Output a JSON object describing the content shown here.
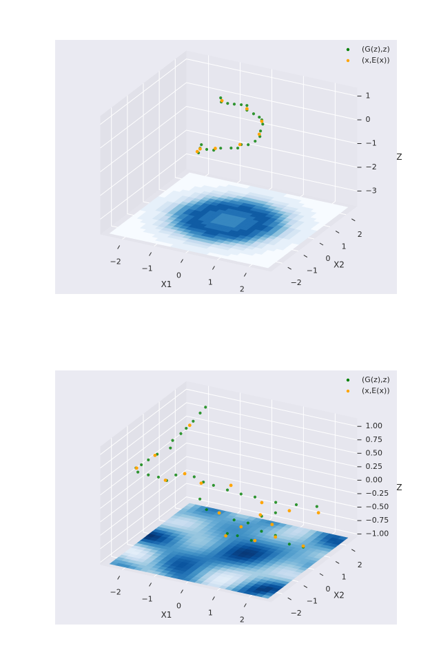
{
  "chart_data": [
    {
      "type": "scatter3d",
      "xlabel": "X1",
      "ylabel": "X2",
      "zlabel": "Z",
      "xlim": [
        -2.7,
        2.7
      ],
      "ylim": [
        -2.7,
        2.7
      ],
      "zlim": [
        -3.64,
        1.35
      ],
      "xticks": [
        {
          "value": -2,
          "label": "−2"
        },
        {
          "value": -1,
          "label": "−1"
        },
        0,
        1,
        2
      ],
      "yticks": [
        {
          "value": -2,
          "label": "−2"
        },
        {
          "value": -1,
          "label": "−1"
        },
        0,
        1,
        2
      ],
      "zticks": [
        {
          "value": -3,
          "label": "−3"
        },
        {
          "value": -2,
          "label": "−2"
        },
        {
          "value": -1,
          "label": "−1"
        },
        0,
        1
      ],
      "grid": true,
      "legend": "upper right",
      "series": [
        {
          "name": "(G(z),z)",
          "color": "green",
          "x": [
            -0.76,
            -0.74,
            -0.54,
            -0.33,
            -0.11,
            0.07,
            0.07,
            0.28,
            0.46,
            0.54,
            0.57,
            0.5,
            0.48,
            0.33,
            0.11,
            -0.11,
            -0.22,
            -0.43,
            -0.76,
            -0.98,
            -1.2,
            -1.41,
            -1.46,
            -1.37
          ],
          "y": [
            1,
            1,
            1,
            1,
            1,
            1,
            1,
            1,
            1,
            1,
            1,
            1,
            1,
            1,
            1,
            1,
            1,
            1,
            1,
            1,
            1,
            1,
            1,
            1
          ],
          "z": [
            0.79,
            0.62,
            0.62,
            0.65,
            0.69,
            0.71,
            0.51,
            0.42,
            0.33,
            0.24,
            0.07,
            -0.24,
            -0.48,
            -0.72,
            -0.93,
            -0.99,
            -1.17,
            -1.23,
            -1.33,
            -1.48,
            -1.51,
            -1.52,
            -1.73,
            -1.36
          ]
        },
        {
          "name": "(x,E(x))",
          "color": "orange",
          "x": [
            -0.72,
            0.07,
            0.54,
            0.46,
            -0.15,
            -0.93,
            -1.41,
            -1.5
          ],
          "y": [
            1,
            1,
            1,
            1,
            1,
            1,
            1,
            1
          ],
          "z": [
            0.68,
            0.57,
            0.18,
            -0.39,
            -1.0,
            -1.39,
            -1.55,
            -1.69
          ]
        }
      ]
    },
    {
      "type": "scatter3d",
      "xlabel": "X1",
      "ylabel": "X2",
      "zlabel": "Z",
      "xlim": [
        -2.7,
        2.7
      ],
      "ylim": [
        -2.7,
        2.7
      ],
      "zlim": [
        -1.05,
        1.15
      ],
      "xticks": [
        {
          "value": -2,
          "label": "−2"
        },
        {
          "value": -1,
          "label": "−1"
        },
        0,
        1,
        2
      ],
      "yticks": [
        {
          "value": -2,
          "label": "−2"
        },
        {
          "value": -1,
          "label": "−1"
        },
        0,
        1,
        2
      ],
      "zticks": [
        {
          "value": -1,
          "label": "−1.00"
        },
        {
          "value": -0.75,
          "label": "−0.75"
        },
        {
          "value": -0.5,
          "label": "−0.50"
        },
        {
          "value": -0.25,
          "label": "−0.25"
        },
        {
          "value": 0,
          "label": "0.00"
        },
        {
          "value": 0.25,
          "label": "0.25"
        },
        {
          "value": 0.5,
          "label": "0.50"
        },
        {
          "value": 0.75,
          "label": "0.75"
        },
        {
          "value": 1,
          "label": "1.00"
        }
      ],
      "grid": true,
      "legend": "upper right",
      "series": [
        {
          "name": "(G(z),z)",
          "color": "green",
          "x": [
            -1.49,
            -1.66,
            -1.88,
            -2.1,
            -2.27,
            -2.53,
            -2.6,
            -2.01,
            -2.29,
            -2.51,
            -2.68,
            -2.62,
            -2.29,
            -1.97,
            -1.71,
            -1.42,
            -1.14,
            -0.84,
            -0.55,
            -0.23,
            0.21,
            0.64,
            1.08,
            0.98,
            1.63,
            2.28,
            -0.66,
            -0.45,
            -0.05,
            0.42,
            0.86,
            1.29,
            1.73,
            0.71,
            1.03,
            1.47,
            1.79,
            2.23,
            1.41,
            1.85
          ],
          "y": [
            1.5,
            1.5,
            1.5,
            1.5,
            1.5,
            1.5,
            1.5,
            -0.5,
            -0.5,
            -0.5,
            -0.5,
            -0.5,
            -0.5,
            -0.5,
            -0.5,
            -0.5,
            -0.5,
            -0.5,
            -0.5,
            -0.5,
            -0.5,
            -0.5,
            -0.5,
            1,
            1,
            1,
            -0.5,
            -0.5,
            -0.5,
            -0.5,
            -0.5,
            -0.5,
            -0.5,
            -1.5,
            -1.5,
            -1.5,
            -1.5,
            -1.5,
            1,
            1
          ],
          "z": [
            1.09,
            0.96,
            0.78,
            0.62,
            0.5,
            0.34,
            0.19,
            0.6,
            0.46,
            0.34,
            0.26,
            0.19,
            0.18,
            0.18,
            0.15,
            0.29,
            0.35,
            0.33,
            0.27,
            0.25,
            0.22,
            0.2,
            0.2,
            -0.25,
            -0.21,
            -0.16,
            -0.06,
            -0.23,
            -0.24,
            -0.31,
            -0.31,
            -0.13,
            -0.01,
            -0.3,
            -0.3,
            -0.33,
            -0.12,
            -0.14,
            -0.97,
            -0.97
          ]
        },
        {
          "name": "(x,E(x))",
          "color": "orange",
          "x": [
            -1.99,
            -2.08,
            -2.66,
            -1.75,
            -1.14,
            -0.62,
            0.32,
            0.54,
            1.41,
            2.33,
            -0.05,
            0.64,
            1.25,
            1.62,
            0.66,
            1.58,
            2.23,
            1.85
          ],
          "y": [
            1.5,
            -0.5,
            -0.5,
            -0.5,
            -0.5,
            -0.5,
            -0.5,
            1,
            1,
            1,
            -0.5,
            -0.5,
            -0.5,
            -0.5,
            -1.5,
            -1.5,
            -1.5,
            1
          ],
          "z": [
            0.69,
            0.57,
            0.26,
            0.15,
            0.35,
            0.24,
            0.32,
            -0.31,
            -0.35,
            -0.27,
            -0.24,
            -0.41,
            -0.11,
            -0.24,
            -0.35,
            -0.32,
            -0.17,
            -0.95
          ]
        }
      ]
    }
  ]
}
